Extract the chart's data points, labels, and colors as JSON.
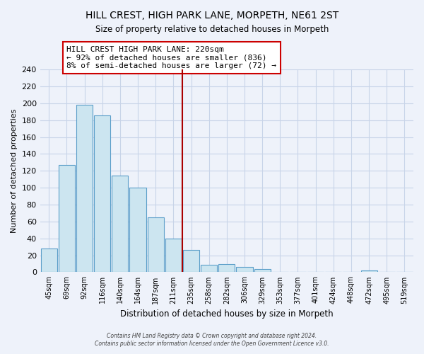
{
  "title": "HILL CREST, HIGH PARK LANE, MORPETH, NE61 2ST",
  "subtitle": "Size of property relative to detached houses in Morpeth",
  "xlabel": "Distribution of detached houses by size in Morpeth",
  "ylabel": "Number of detached properties",
  "categories": [
    "45sqm",
    "69sqm",
    "92sqm",
    "116sqm",
    "140sqm",
    "164sqm",
    "187sqm",
    "211sqm",
    "235sqm",
    "258sqm",
    "282sqm",
    "306sqm",
    "329sqm",
    "353sqm",
    "377sqm",
    "401sqm",
    "424sqm",
    "448sqm",
    "472sqm",
    "495sqm",
    "519sqm"
  ],
  "values": [
    28,
    127,
    198,
    186,
    114,
    100,
    65,
    40,
    26,
    9,
    10,
    6,
    4,
    0,
    0,
    0,
    0,
    0,
    2,
    0,
    0
  ],
  "bar_color": "#cce5f0",
  "bar_edge_color": "#5b9ec9",
  "vline_index": 7,
  "vline_color": "#aa0000",
  "annotation_line1": "HILL CREST HIGH PARK LANE: 220sqm",
  "annotation_line2": "← 92% of detached houses are smaller (836)",
  "annotation_line3": "8% of semi-detached houses are larger (72) →",
  "annotation_box_color": "#ffffff",
  "annotation_box_edge": "#cc0000",
  "ylim": [
    0,
    240
  ],
  "yticks": [
    0,
    20,
    40,
    60,
    80,
    100,
    120,
    140,
    160,
    180,
    200,
    220,
    240
  ],
  "footer_line1": "Contains HM Land Registry data © Crown copyright and database right 2024.",
  "footer_line2": "Contains public sector information licensed under the Open Government Licence v3.0.",
  "background_color": "#eef2fa",
  "plot_bg_color": "#eef2fa",
  "grid_color": "#c8d4e8"
}
